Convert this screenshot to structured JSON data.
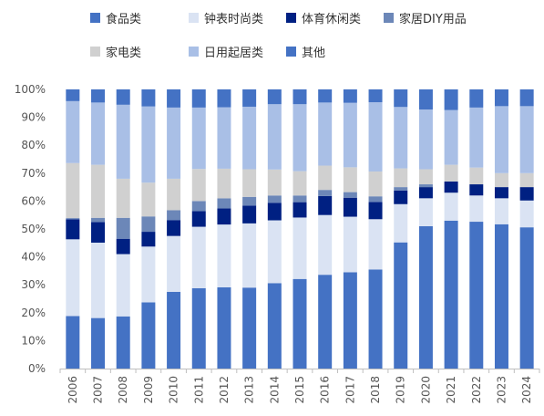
{
  "chart_data": {
    "type": "bar",
    "stacked": true,
    "percent_stacked": true,
    "title": "",
    "xlabel": "",
    "ylabel": "",
    "ylim": [
      0,
      100
    ],
    "y_ticks": [
      "0%",
      "10%",
      "20%",
      "30%",
      "40%",
      "50%",
      "60%",
      "70%",
      "80%",
      "90%",
      "100%"
    ],
    "grid": false,
    "legend_position": "top",
    "categories": [
      "2006",
      "2007",
      "2008",
      "2009",
      "2010",
      "2011",
      "2012",
      "2013",
      "2014",
      "2015",
      "2016",
      "2017",
      "2018",
      "2019",
      "2020",
      "2021",
      "2022",
      "2023",
      "2024"
    ],
    "series": [
      {
        "name": "食品类",
        "color": "#4472c4",
        "values": [
          18.8,
          18.1,
          18.7,
          23.7,
          27.5,
          28.8,
          29.1,
          29.0,
          30.6,
          32.1,
          33.6,
          34.5,
          35.5,
          45.2,
          51.0,
          53.0,
          52.6,
          51.7,
          50.6
        ]
      },
      {
        "name": "钟表时尚类",
        "color": "#dae3f3",
        "values": [
          27.5,
          27.0,
          22.3,
          20.0,
          20.0,
          22.0,
          22.5,
          23.0,
          22.5,
          22.0,
          21.4,
          19.9,
          18.0,
          13.7,
          10.0,
          10.0,
          9.4,
          9.3,
          9.6
        ]
      },
      {
        "name": "体育休闲类",
        "color": "#002082",
        "values": [
          7.2,
          7.4,
          5.5,
          5.3,
          5.7,
          5.6,
          5.8,
          6.4,
          6.3,
          5.5,
          6.8,
          6.8,
          6.2,
          4.9,
          4.0,
          4.0,
          4.0,
          4.0,
          4.8
        ]
      },
      {
        "name": "家居DIY用品",
        "color": "#6c87b8",
        "values": [
          0.4,
          1.5,
          7.5,
          5.5,
          3.5,
          3.6,
          3.6,
          3.1,
          2.6,
          2.4,
          2.2,
          2.0,
          2.0,
          1.2,
          1.0,
          0.0,
          0.0,
          0.0,
          0.0
        ]
      },
      {
        "name": "家电类",
        "color": "#d0d0d0",
        "values": [
          19.7,
          19.0,
          14.0,
          12.1,
          11.3,
          11.5,
          10.6,
          9.9,
          9.3,
          8.7,
          8.7,
          8.9,
          8.9,
          6.7,
          5.4,
          6.0,
          6.0,
          5.0,
          5.0
        ]
      },
      {
        "name": "日用起居类",
        "color": "#a9bfe6",
        "values": [
          22.2,
          22.3,
          26.5,
          27.3,
          25.5,
          22.0,
          22.0,
          22.4,
          23.4,
          24.0,
          22.6,
          23.1,
          24.8,
          22.0,
          21.4,
          19.6,
          21.5,
          24.0,
          24.0
        ]
      },
      {
        "name": "其他",
        "color": "#4472c4",
        "values": [
          4.2,
          4.7,
          5.5,
          6.1,
          6.5,
          6.5,
          6.4,
          6.2,
          5.3,
          5.3,
          4.7,
          4.8,
          4.6,
          6.3,
          7.2,
          7.4,
          6.5,
          6.0,
          6.0
        ]
      }
    ]
  }
}
